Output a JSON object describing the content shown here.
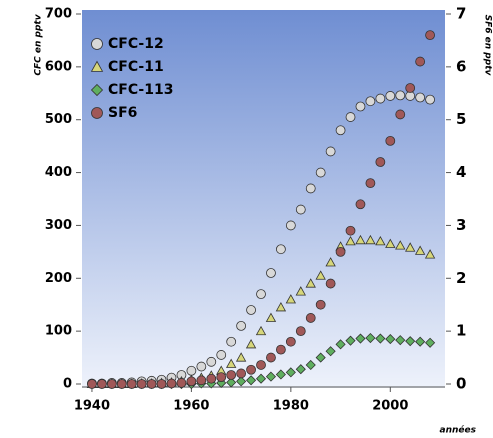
{
  "chart_data": {
    "type": "scatter",
    "x_label": "années",
    "y_label": "CFC en pptv",
    "y2_label": "SF6 en pptv",
    "x": [
      1940,
      1942,
      1944,
      1946,
      1948,
      1950,
      1952,
      1954,
      1956,
      1958,
      1960,
      1962,
      1964,
      1966,
      1968,
      1970,
      1972,
      1974,
      1976,
      1978,
      1980,
      1982,
      1984,
      1986,
      1988,
      1990,
      1992,
      1994,
      1996,
      1998,
      2000,
      2002,
      2004,
      2006,
      2008
    ],
    "xlim": [
      1938,
      2011
    ],
    "xticks": [
      1940,
      1960,
      1980,
      2000
    ],
    "ylim": [
      0,
      700
    ],
    "yticks": [
      0,
      100,
      200,
      300,
      400,
      500,
      600,
      700
    ],
    "y2lim": [
      0,
      7
    ],
    "y2ticks": [
      0,
      1,
      2,
      3,
      4,
      5,
      6,
      7
    ],
    "legend": "top-left",
    "series": [
      {
        "name": "CFC-12",
        "color": "#d8d8d8",
        "marker": "circle",
        "values": [
          1,
          1,
          2,
          2,
          3,
          5,
          6,
          8,
          12,
          17,
          25,
          33,
          42,
          55,
          80,
          110,
          140,
          170,
          210,
          255,
          300,
          330,
          370,
          400,
          440,
          480,
          505,
          525,
          535,
          540,
          545,
          546,
          545,
          542,
          538
        ]
      },
      {
        "name": "CFC-11",
        "color": "#d6d67a",
        "marker": "triangle",
        "values": [
          0,
          0,
          0,
          0,
          0,
          1,
          1,
          2,
          3,
          5,
          8,
          12,
          16,
          25,
          38,
          50,
          75,
          100,
          125,
          145,
          160,
          175,
          190,
          205,
          230,
          260,
          270,
          272,
          272,
          270,
          265,
          262,
          258,
          252,
          245
        ]
      },
      {
        "name": "CFC-113",
        "color": "#5fae5f",
        "marker": "diamond",
        "values": [
          0,
          0,
          0,
          0,
          0,
          0,
          0,
          0,
          0,
          0,
          0,
          1,
          1,
          2,
          3,
          5,
          7,
          10,
          14,
          18,
          22,
          28,
          36,
          50,
          62,
          75,
          82,
          86,
          87,
          86,
          85,
          83,
          81,
          80,
          78
        ]
      },
      {
        "name": "SF6",
        "color": "#a05858",
        "marker": "circle",
        "axis": "y2",
        "values": [
          0,
          0,
          0,
          0,
          0,
          0,
          0,
          0,
          0.01,
          0.02,
          0.05,
          0.07,
          0.1,
          0.13,
          0.17,
          0.2,
          0.27,
          0.36,
          0.5,
          0.65,
          0.8,
          1.0,
          1.25,
          1.5,
          1.9,
          2.5,
          2.9,
          3.4,
          3.8,
          4.2,
          4.6,
          5.1,
          5.6,
          6.1,
          6.6
        ]
      }
    ]
  }
}
